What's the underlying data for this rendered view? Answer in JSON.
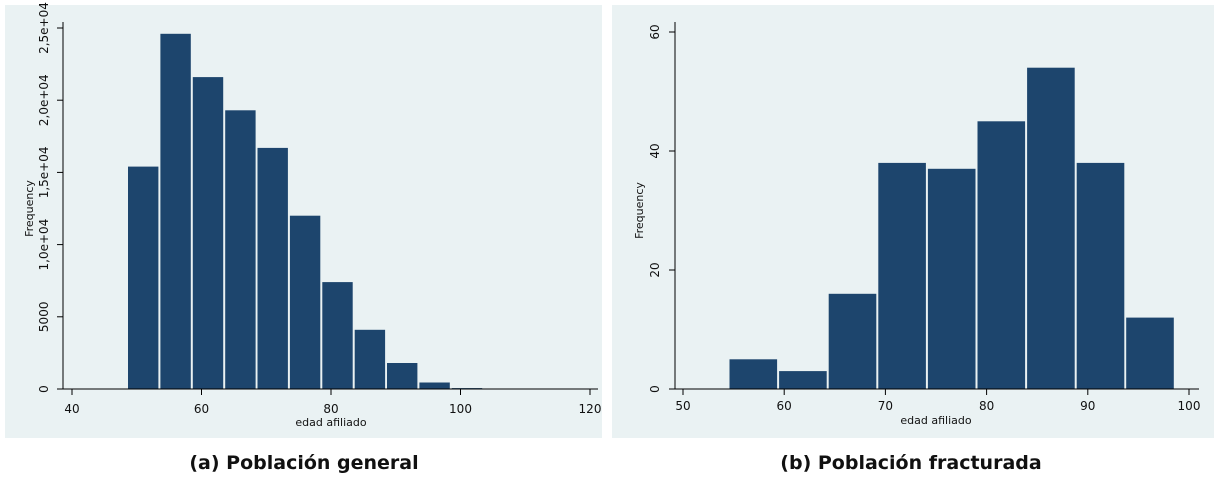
{
  "chart_data": [
    {
      "id": "a",
      "type": "bar",
      "subtype": "histogram",
      "caption": "(a) Población general",
      "xlabel": "edad afiliado",
      "ylabel": "Frequency",
      "xlim": [
        38,
        121
      ],
      "ylim": [
        0,
        25800
      ],
      "x_ticks": [
        40,
        60,
        80,
        100,
        120
      ],
      "y_ticks": [
        0,
        5000,
        10000,
        15000,
        20000,
        25000
      ],
      "y_tick_labels": [
        "0",
        "5000",
        "1,0e+04",
        "1,5e+04",
        "2,0e+04",
        "2,5e+04"
      ],
      "bin_width": 5,
      "bins": [
        {
          "start": 48.5,
          "value": 15400
        },
        {
          "start": 53.5,
          "value": 24600
        },
        {
          "start": 58.5,
          "value": 21600
        },
        {
          "start": 63.5,
          "value": 19300
        },
        {
          "start": 68.5,
          "value": 16700
        },
        {
          "start": 73.5,
          "value": 12000
        },
        {
          "start": 78.5,
          "value": 7400
        },
        {
          "start": 83.5,
          "value": 4100
        },
        {
          "start": 88.5,
          "value": 1800
        },
        {
          "start": 93.5,
          "value": 450
        },
        {
          "start": 98.5,
          "value": 60
        },
        {
          "start": 103.5,
          "value": 30
        }
      ],
      "bar_color": "#1d456d",
      "grid": false
    },
    {
      "id": "b",
      "type": "bar",
      "subtype": "histogram",
      "caption": "(b) Población fracturada",
      "xlabel": "edad afiliado",
      "ylabel": "Frequency",
      "xlim": [
        49,
        101
      ],
      "ylim": [
        0,
        61
      ],
      "x_ticks": [
        50,
        60,
        70,
        80,
        90,
        100
      ],
      "y_ticks": [
        0,
        20,
        40,
        60
      ],
      "y_tick_labels": [
        "0",
        "20",
        "40",
        "60"
      ],
      "bin_width": 4.9,
      "bins": [
        {
          "start": 54.5,
          "value": 5
        },
        {
          "start": 59.4,
          "value": 3
        },
        {
          "start": 64.3,
          "value": 16
        },
        {
          "start": 69.2,
          "value": 38
        },
        {
          "start": 74.1,
          "value": 37
        },
        {
          "start": 79.0,
          "value": 45
        },
        {
          "start": 83.9,
          "value": 54
        },
        {
          "start": 88.8,
          "value": 38
        },
        {
          "start": 93.7,
          "value": 12
        }
      ],
      "bar_color": "#1d456d",
      "grid": false
    }
  ]
}
